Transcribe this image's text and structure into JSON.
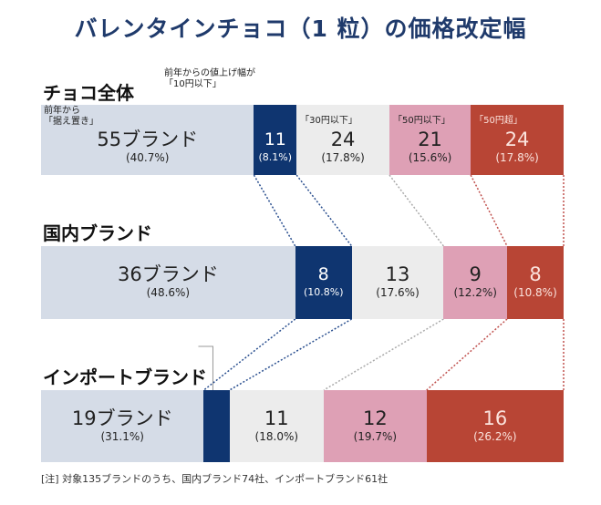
{
  "title": "バレンタインチョコ（1 粒）の価格改定幅",
  "footer": "[注] 対象135ブランドのうち、国内ブランド74社、インポートブランド61社",
  "chart_data": {
    "type": "bar",
    "stacked": true,
    "orientation": "horizontal",
    "categories": [
      "チョコ全体",
      "国内ブランド",
      "インポートブランド"
    ],
    "series": [
      {
        "name": "前年から「据え置き」",
        "color": "#d5dce7",
        "values": [
          55,
          36,
          19
        ],
        "percent": [
          "(40.7%)",
          "(48.6%)",
          "(31.1%)"
        ]
      },
      {
        "name": "前年からの値上げ幅が「10円以下」",
        "color": "#0f3570",
        "values": [
          11,
          8,
          3
        ],
        "percent": [
          "(8.1%)",
          "(10.8%)",
          "(4.9%)"
        ]
      },
      {
        "name": "「30円以下」",
        "color": "#ececec",
        "values": [
          24,
          13,
          11
        ],
        "percent": [
          "(17.8%)",
          "(17.6%)",
          "(18.0%)"
        ]
      },
      {
        "name": "「50円以下」",
        "color": "#dea0b5",
        "values": [
          21,
          9,
          12
        ],
        "percent": [
          "(15.6%)",
          "(12.2%)",
          "(19.7%)"
        ]
      },
      {
        "name": "「50円超」",
        "color": "#b84535",
        "values": [
          24,
          8,
          16
        ],
        "percent": [
          "(17.8%)",
          "(10.8%)",
          "(26.2%)"
        ]
      }
    ],
    "unit_suffix": "ブランド",
    "captions": {
      "keep_line1": "前年から",
      "keep_line2": "「据え置き」",
      "ten_line1": "前年からの値上げ幅が",
      "ten_line2": "「10円以下」"
    }
  }
}
